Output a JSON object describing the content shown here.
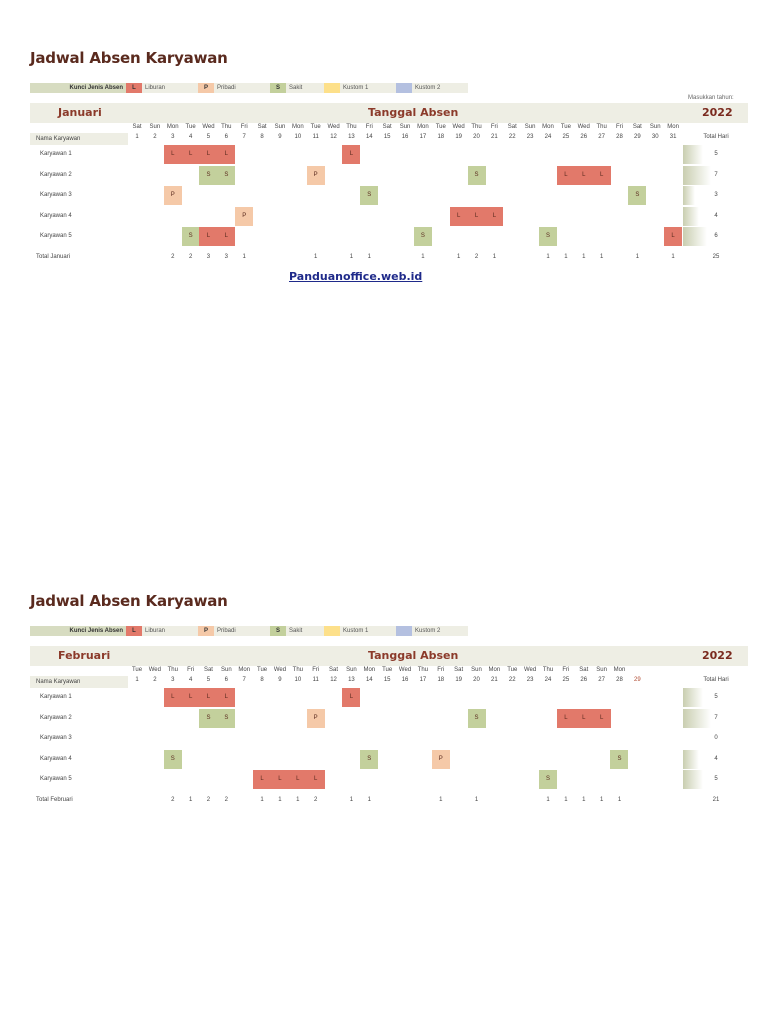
{
  "link": "Panduanoffice.web.id",
  "legend": {
    "title": "Kunci Jenis Absen",
    "items": [
      {
        "code": "L",
        "label": "Liburan",
        "color": "#e2796a"
      },
      {
        "code": "P",
        "label": "Pribadi",
        "color": "#f5c9a8"
      },
      {
        "code": "S",
        "label": "Sakit",
        "color": "#c3d09c"
      },
      {
        "code": "",
        "label": "Kustom 1",
        "color": "#fde08a"
      },
      {
        "code": "",
        "label": "Kustom 2",
        "color": "#b4c0e0"
      }
    ]
  },
  "year_prompt": "Masukkan tahun:",
  "year": "2022",
  "sheets": [
    {
      "title": "Jadwal Absen Karyawan",
      "month": "Januari",
      "tanggal_label": "Tanggal Absen",
      "name_header": "Nama Karyawan",
      "total_header": "Total Hari",
      "days": [
        "Sat",
        "Sun",
        "Mon",
        "Tue",
        "Wed",
        "Thu",
        "Fri",
        "Sat",
        "Sun",
        "Mon",
        "Tue",
        "Wed",
        "Thu",
        "Fri",
        "Sat",
        "Sun",
        "Mon",
        "Tue",
        "Wed",
        "Thu",
        "Fri",
        "Sat",
        "Sun",
        "Mon",
        "Tue",
        "Wed",
        "Thu",
        "Fri",
        "Sat",
        "Sun",
        "Mon"
      ],
      "dates": [
        "1",
        "2",
        "3",
        "4",
        "5",
        "6",
        "7",
        "8",
        "9",
        "10",
        "11",
        "12",
        "13",
        "14",
        "15",
        "16",
        "17",
        "18",
        "19",
        "20",
        "21",
        "22",
        "23",
        "24",
        "25",
        "26",
        "27",
        "28",
        "29",
        "30",
        "31"
      ],
      "extra_date": "",
      "employees": [
        {
          "name": "Karyawan 1",
          "absences": {
            "3": "L",
            "4": "L",
            "5": "L",
            "6": "L",
            "13": "L"
          },
          "total": "5"
        },
        {
          "name": "Karyawan 2",
          "absences": {
            "5": "S",
            "6": "S",
            "11": "P",
            "20": "S",
            "25": "L",
            "26": "L",
            "27": "L"
          },
          "total": "7"
        },
        {
          "name": "Karyawan 3",
          "absences": {
            "3": "P",
            "14": "S",
            "29": "S"
          },
          "total": "3"
        },
        {
          "name": "Karyawan 4",
          "absences": {
            "7": "P",
            "19": "L",
            "20": "L",
            "21": "L"
          },
          "total": "4"
        },
        {
          "name": "Karyawan 5",
          "absences": {
            "4": "S",
            "5": "L",
            "6": "L",
            "17": "S",
            "24": "S",
            "31": "L"
          },
          "total": "6"
        }
      ],
      "total_label": "Total Januari",
      "day_totals": {
        "3": "2",
        "4": "2",
        "5": "3",
        "6": "3",
        "7": "1",
        "11": "1",
        "13": "1",
        "14": "1",
        "17": "1",
        "19": "1",
        "20": "2",
        "21": "1",
        "24": "1",
        "25": "1",
        "26": "1",
        "27": "1",
        "29": "1",
        "31": "1"
      },
      "grand_total": "25"
    },
    {
      "title": "Jadwal Absen Karyawan",
      "month": "Februari",
      "tanggal_label": "Tanggal Absen",
      "name_header": "Nama Karyawan",
      "total_header": "Total Hari",
      "days": [
        "Tue",
        "Wed",
        "Thu",
        "Fri",
        "Sat",
        "Sun",
        "Mon",
        "Tue",
        "Wed",
        "Thu",
        "Fri",
        "Sat",
        "Sun",
        "Mon",
        "Tue",
        "Wed",
        "Thu",
        "Fri",
        "Sat",
        "Sun",
        "Mon",
        "Tue",
        "Wed",
        "Thu",
        "Fri",
        "Sat",
        "Sun",
        "Mon"
      ],
      "dates": [
        "1",
        "2",
        "3",
        "4",
        "5",
        "6",
        "7",
        "8",
        "9",
        "10",
        "11",
        "12",
        "13",
        "14",
        "15",
        "16",
        "17",
        "18",
        "19",
        "20",
        "21",
        "22",
        "23",
        "24",
        "25",
        "26",
        "27",
        "28"
      ],
      "extra_date": "29",
      "employees": [
        {
          "name": "Karyawan 1",
          "absences": {
            "3": "L",
            "4": "L",
            "5": "L",
            "6": "L",
            "13": "L"
          },
          "total": "5"
        },
        {
          "name": "Karyawan 2",
          "absences": {
            "5": "S",
            "6": "S",
            "11": "P",
            "20": "S",
            "25": "L",
            "26": "L",
            "27": "L"
          },
          "total": "7"
        },
        {
          "name": "Karyawan 3",
          "absences": {},
          "total": "0"
        },
        {
          "name": "Karyawan 4",
          "absences": {
            "3": "S",
            "14": "S",
            "18": "P",
            "28": "S"
          },
          "total": "4"
        },
        {
          "name": "Karyawan 5",
          "absences": {
            "8": "L",
            "9": "L",
            "10": "L",
            "11": "L",
            "24": "S"
          },
          "total": "5"
        }
      ],
      "total_label": "Total Februari",
      "day_totals": {
        "3": "2",
        "4": "1",
        "5": "2",
        "6": "2",
        "8": "1",
        "9": "1",
        "10": "1",
        "11": "2",
        "13": "1",
        "14": "1",
        "18": "1",
        "20": "1",
        "24": "1",
        "25": "1",
        "26": "1",
        "27": "1",
        "28": "1"
      },
      "grand_total": "21"
    }
  ]
}
